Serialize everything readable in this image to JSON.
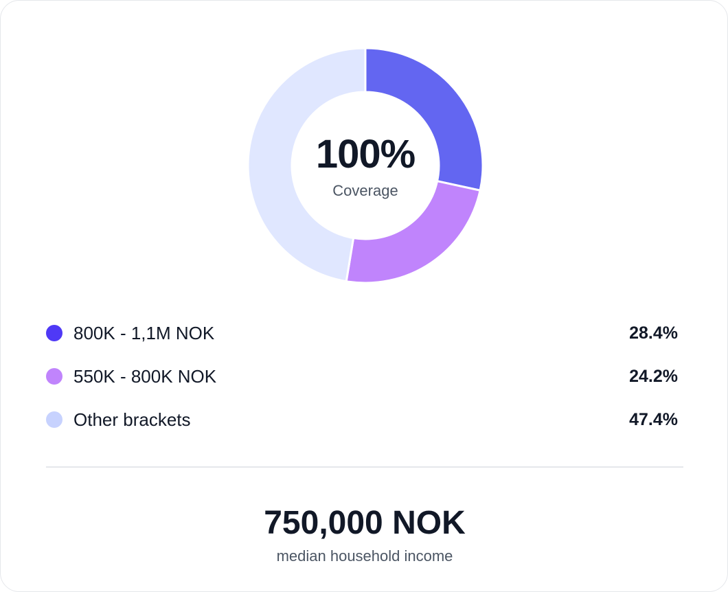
{
  "chart_data": {
    "type": "pie",
    "title": "",
    "center_value": "100%",
    "center_label": "Coverage",
    "slices": [
      {
        "label": "800K - 1,1M NOK",
        "value": 28.4,
        "display": "28.4%",
        "color": "#6366f1",
        "dot_color": "#4f39f6"
      },
      {
        "label": "550K - 800K NOK",
        "value": 24.2,
        "display": "24.2%",
        "color": "#c084fc",
        "dot_color": "#c084fc"
      },
      {
        "label": "Other brackets",
        "value": 47.4,
        "display": "47.4%",
        "color": "#e0e7ff",
        "dot_color": "#c7d2fe"
      }
    ]
  },
  "summary": {
    "value": "750,000 NOK",
    "label": "median household income"
  }
}
